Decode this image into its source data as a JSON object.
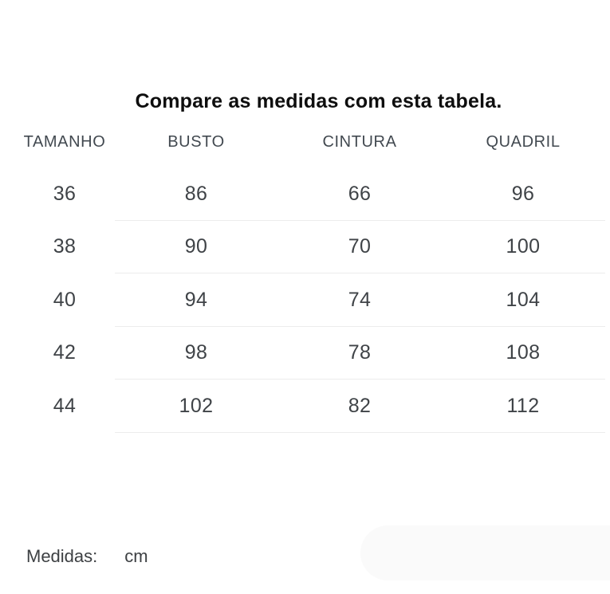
{
  "title": "Compare as medidas com esta tabela.",
  "table": {
    "headers": [
      "TAMANHO",
      "BUSTO",
      "CINTURA",
      "QUADRIL"
    ],
    "rows": [
      [
        "36",
        "86",
        "66",
        "96"
      ],
      [
        "38",
        "90",
        "70",
        "100"
      ],
      [
        "40",
        "94",
        "74",
        "104"
      ],
      [
        "42",
        "98",
        "78",
        "108"
      ],
      [
        "44",
        "102",
        "82",
        "112"
      ]
    ]
  },
  "footer": {
    "label": "Medidas:",
    "unit": "cm"
  },
  "colors": {
    "background": "#ffffff",
    "title_text": "#0e0e0e",
    "header_text": "#424950",
    "cell_text": "#3f4347",
    "footer_text": "#3d4043",
    "divider": "#ececec",
    "pill": "#fafafa"
  }
}
